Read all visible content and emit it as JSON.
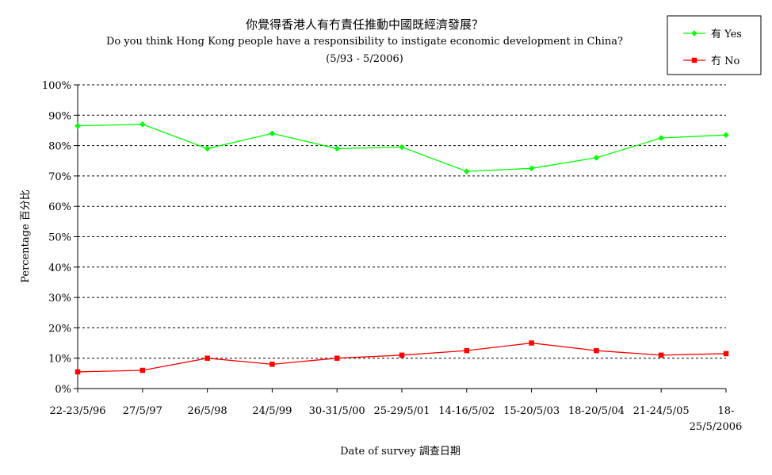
{
  "chart_data": {
    "type": "line",
    "title": "你覺得香港人有冇責任推動中國既經濟發展？",
    "subtitle": "Do you think Hong Kong people have a responsibility to instigate economic development in China?",
    "period": "(5/93 - 5/2006)",
    "xlabel": "Date of survey  調查日期",
    "ylabel": "Percentage  百分比",
    "ylim": [
      0,
      100
    ],
    "yticks": [
      "0%",
      "10%",
      "20%",
      "30%",
      "40%",
      "50%",
      "60%",
      "70%",
      "80%",
      "90%",
      "100%"
    ],
    "categories": [
      "22-23/5/96",
      "27/5/97",
      "26/5/98",
      "24/5/99",
      "30-31/5/00",
      "25-29/5/01",
      "14-16/5/02",
      "15-20/5/03",
      "18-20/5/04",
      "21-24/5/05",
      "18-25/5/2006"
    ],
    "category_display": [
      [
        "22-23/5/96"
      ],
      [
        "27/5/97"
      ],
      [
        "26/5/98"
      ],
      [
        "24/5/99"
      ],
      [
        "30-31/5/00"
      ],
      [
        "25-29/5/01"
      ],
      [
        "14-16/5/02"
      ],
      [
        "15-20/5/03"
      ],
      [
        "18-20/5/04"
      ],
      [
        "21-24/5/05"
      ],
      [
        "18-",
        "25/5/2006"
      ]
    ],
    "series": [
      {
        "name": "有 Yes",
        "color": "#00ff00",
        "marker": "diamond",
        "values": [
          86.5,
          87,
          79,
          84,
          79,
          79.5,
          71.5,
          72.5,
          76,
          82.5,
          83.5
        ]
      },
      {
        "name": "冇 No",
        "color": "#ff0000",
        "marker": "square",
        "values": [
          5.5,
          6,
          10,
          8,
          10,
          11,
          12.5,
          15,
          12.5,
          11,
          11.5
        ]
      }
    ],
    "grid": "horizontal dashed",
    "legend": "top-right"
  }
}
